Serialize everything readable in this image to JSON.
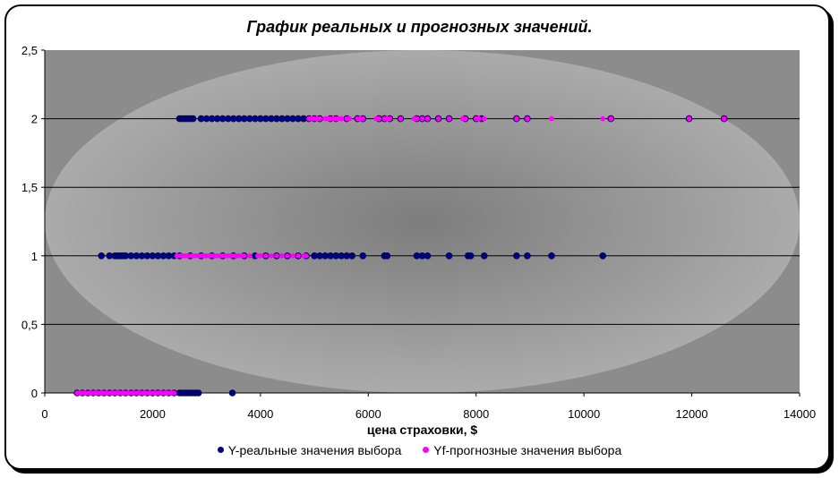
{
  "chart_data": {
    "type": "scatter",
    "title": "График реальных и прогнозных значений.",
    "xlabel": "цена страховки, $",
    "ylabel": "",
    "xlim": [
      0,
      14000
    ],
    "ylim": [
      0,
      2.5
    ],
    "x_ticks": [
      0,
      2000,
      4000,
      6000,
      8000,
      10000,
      12000,
      14000
    ],
    "y_ticks": [
      0,
      0.5,
      1,
      1.5,
      2,
      2.5
    ],
    "x_tick_labels": [
      "0",
      "2000",
      "4000",
      "6000",
      "8000",
      "10000",
      "12000",
      "14000"
    ],
    "y_tick_labels": [
      "0",
      "0,5",
      "1",
      "1,5",
      "2",
      "2,5"
    ],
    "grid": "horizontal",
    "legend_position": "bottom",
    "series": [
      {
        "name": "Y-реальные значения выбора",
        "color": "#000080",
        "points": [
          [
            600,
            0
          ],
          [
            700,
            0
          ],
          [
            800,
            0
          ],
          [
            900,
            0
          ],
          [
            1000,
            0
          ],
          [
            1100,
            0
          ],
          [
            1200,
            0
          ],
          [
            1300,
            0
          ],
          [
            1400,
            0
          ],
          [
            1500,
            0
          ],
          [
            1600,
            0
          ],
          [
            1700,
            0
          ],
          [
            1800,
            0
          ],
          [
            1900,
            0
          ],
          [
            2000,
            0
          ],
          [
            2100,
            0
          ],
          [
            2200,
            0
          ],
          [
            2300,
            0
          ],
          [
            2400,
            0
          ],
          [
            2500,
            0
          ],
          [
            2550,
            0
          ],
          [
            2600,
            0
          ],
          [
            2650,
            0
          ],
          [
            2700,
            0
          ],
          [
            2750,
            0
          ],
          [
            2800,
            0
          ],
          [
            2850,
            0
          ],
          [
            3480,
            0
          ],
          [
            1050,
            1
          ],
          [
            1200,
            1
          ],
          [
            1300,
            1
          ],
          [
            1350,
            1
          ],
          [
            1400,
            1
          ],
          [
            1450,
            1
          ],
          [
            1500,
            1
          ],
          [
            1600,
            1
          ],
          [
            1700,
            1
          ],
          [
            1800,
            1
          ],
          [
            1900,
            1
          ],
          [
            2000,
            1
          ],
          [
            2100,
            1
          ],
          [
            2200,
            1
          ],
          [
            2300,
            1
          ],
          [
            2400,
            1
          ],
          [
            2500,
            1
          ],
          [
            2700,
            1
          ],
          [
            2900,
            1
          ],
          [
            3100,
            1
          ],
          [
            3300,
            1
          ],
          [
            3500,
            1
          ],
          [
            3700,
            1
          ],
          [
            3900,
            1
          ],
          [
            4100,
            1
          ],
          [
            4300,
            1
          ],
          [
            4500,
            1
          ],
          [
            4700,
            1
          ],
          [
            4850,
            1
          ],
          [
            5000,
            1
          ],
          [
            5100,
            1
          ],
          [
            5200,
            1
          ],
          [
            5300,
            1
          ],
          [
            5400,
            1
          ],
          [
            5500,
            1
          ],
          [
            5600,
            1
          ],
          [
            5700,
            1
          ],
          [
            5900,
            1
          ],
          [
            6300,
            1
          ],
          [
            6350,
            1
          ],
          [
            6900,
            1
          ],
          [
            7000,
            1
          ],
          [
            7100,
            1
          ],
          [
            7500,
            1
          ],
          [
            7850,
            1
          ],
          [
            7900,
            1
          ],
          [
            8150,
            1
          ],
          [
            8750,
            1
          ],
          [
            8950,
            1
          ],
          [
            9400,
            1
          ],
          [
            10350,
            1
          ],
          [
            2500,
            2
          ],
          [
            2550,
            2
          ],
          [
            2600,
            2
          ],
          [
            2650,
            2
          ],
          [
            2700,
            2
          ],
          [
            2750,
            2
          ],
          [
            2900,
            2
          ],
          [
            3000,
            2
          ],
          [
            3100,
            2
          ],
          [
            3200,
            2
          ],
          [
            3300,
            2
          ],
          [
            3400,
            2
          ],
          [
            3500,
            2
          ],
          [
            3600,
            2
          ],
          [
            3700,
            2
          ],
          [
            3800,
            2
          ],
          [
            3900,
            2
          ],
          [
            4000,
            2
          ],
          [
            4100,
            2
          ],
          [
            4200,
            2
          ],
          [
            4300,
            2
          ],
          [
            4400,
            2
          ],
          [
            4500,
            2
          ],
          [
            4600,
            2
          ],
          [
            4700,
            2
          ],
          [
            4800,
            2
          ],
          [
            4900,
            2
          ],
          [
            5000,
            2
          ],
          [
            5100,
            2
          ],
          [
            5300,
            2
          ],
          [
            5400,
            2
          ],
          [
            5600,
            2
          ],
          [
            5800,
            2
          ],
          [
            5900,
            2
          ],
          [
            6200,
            2
          ],
          [
            6300,
            2
          ],
          [
            6400,
            2
          ],
          [
            6600,
            2
          ],
          [
            6900,
            2
          ],
          [
            7000,
            2
          ],
          [
            7100,
            2
          ],
          [
            7300,
            2
          ],
          [
            7500,
            2
          ],
          [
            7800,
            2
          ],
          [
            8000,
            2
          ],
          [
            8100,
            2
          ],
          [
            8750,
            2
          ],
          [
            8950,
            2
          ],
          [
            10500,
            2
          ],
          [
            11950,
            2
          ],
          [
            12600,
            2
          ]
        ]
      },
      {
        "name": "Yf-прогнозные значения выбора",
        "color": "#FF00FF",
        "points": [
          [
            600,
            0
          ],
          [
            650,
            0
          ],
          [
            700,
            0
          ],
          [
            750,
            0
          ],
          [
            800,
            0
          ],
          [
            850,
            0
          ],
          [
            900,
            0
          ],
          [
            950,
            0
          ],
          [
            1000,
            0
          ],
          [
            1050,
            0
          ],
          [
            1100,
            0
          ],
          [
            1150,
            0
          ],
          [
            1200,
            0
          ],
          [
            1250,
            0
          ],
          [
            1300,
            0
          ],
          [
            1350,
            0
          ],
          [
            1400,
            0
          ],
          [
            1450,
            0
          ],
          [
            1500,
            0
          ],
          [
            1550,
            0
          ],
          [
            1600,
            0
          ],
          [
            1650,
            0
          ],
          [
            1700,
            0
          ],
          [
            1750,
            0
          ],
          [
            1800,
            0
          ],
          [
            1850,
            0
          ],
          [
            1900,
            0
          ],
          [
            1950,
            0
          ],
          [
            2000,
            0
          ],
          [
            2050,
            0
          ],
          [
            2100,
            0
          ],
          [
            2150,
            0
          ],
          [
            2200,
            0
          ],
          [
            2250,
            0
          ],
          [
            2300,
            0
          ],
          [
            2350,
            0
          ],
          [
            2400,
            0
          ],
          [
            2450,
            1
          ],
          [
            2500,
            1
          ],
          [
            2550,
            1
          ],
          [
            2600,
            1
          ],
          [
            2650,
            1
          ],
          [
            2700,
            1
          ],
          [
            2750,
            1
          ],
          [
            2800,
            1
          ],
          [
            2850,
            1
          ],
          [
            2900,
            1
          ],
          [
            2950,
            1
          ],
          [
            3000,
            1
          ],
          [
            3050,
            1
          ],
          [
            3100,
            1
          ],
          [
            3150,
            1
          ],
          [
            3200,
            1
          ],
          [
            3250,
            1
          ],
          [
            3300,
            1
          ],
          [
            3350,
            1
          ],
          [
            3400,
            1
          ],
          [
            3450,
            1
          ],
          [
            3500,
            1
          ],
          [
            3550,
            1
          ],
          [
            3600,
            1
          ],
          [
            3650,
            1
          ],
          [
            3700,
            1
          ],
          [
            3800,
            1
          ],
          [
            3950,
            1
          ],
          [
            4000,
            1
          ],
          [
            4100,
            1
          ],
          [
            4200,
            1
          ],
          [
            4300,
            1
          ],
          [
            4400,
            1
          ],
          [
            4500,
            1
          ],
          [
            4600,
            1
          ],
          [
            4700,
            1
          ],
          [
            4800,
            1
          ],
          [
            4850,
            1
          ],
          [
            4900,
            2
          ],
          [
            4950,
            2
          ],
          [
            5000,
            2
          ],
          [
            5050,
            2
          ],
          [
            5100,
            2
          ],
          [
            5200,
            2
          ],
          [
            5250,
            2
          ],
          [
            5300,
            2
          ],
          [
            5350,
            2
          ],
          [
            5400,
            2
          ],
          [
            5450,
            2
          ],
          [
            5500,
            2
          ],
          [
            5600,
            2
          ],
          [
            5650,
            2
          ],
          [
            5800,
            2
          ],
          [
            5850,
            2
          ],
          [
            5900,
            2
          ],
          [
            6150,
            2
          ],
          [
            6200,
            2
          ],
          [
            6300,
            2
          ],
          [
            6350,
            2
          ],
          [
            6400,
            2
          ],
          [
            6600,
            2
          ],
          [
            6850,
            2
          ],
          [
            6900,
            2
          ],
          [
            7000,
            2
          ],
          [
            7100,
            2
          ],
          [
            7300,
            2
          ],
          [
            7500,
            2
          ],
          [
            7750,
            2
          ],
          [
            7800,
            2
          ],
          [
            8000,
            2
          ],
          [
            8050,
            2
          ],
          [
            8150,
            2
          ],
          [
            8750,
            2
          ],
          [
            8950,
            2
          ],
          [
            9400,
            2
          ],
          [
            10350,
            2
          ],
          [
            10500,
            2
          ],
          [
            11950,
            2
          ],
          [
            12600,
            2
          ]
        ]
      }
    ]
  }
}
